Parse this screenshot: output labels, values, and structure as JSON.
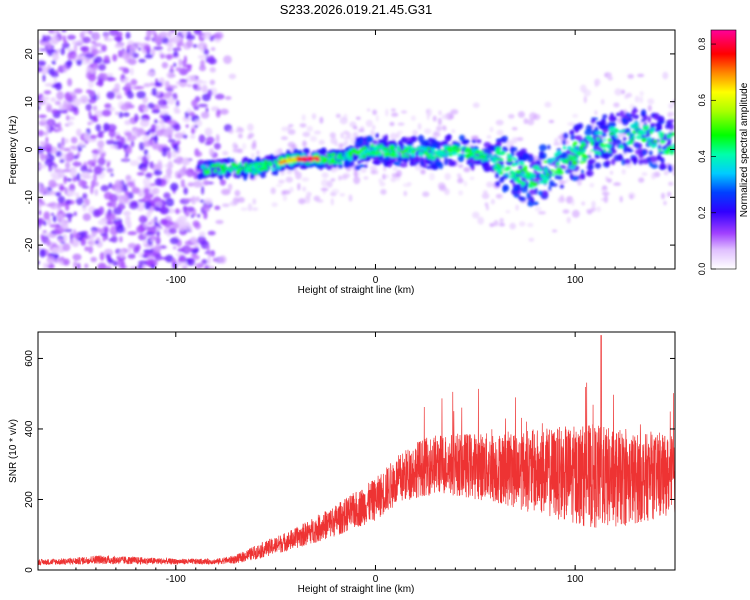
{
  "chart_data": [
    {
      "type": "heatmap",
      "title": "S233.2026.019.21.45.G31",
      "xlabel": "Height of straight line (km)",
      "ylabel": "Frequency (Hz)",
      "xlim": [
        -169,
        150
      ],
      "ylim": [
        -25,
        25
      ],
      "xticks": [
        -100,
        0,
        100
      ],
      "yticks": [
        -20,
        -10,
        0,
        10,
        20
      ],
      "colorbar": {
        "label": "Normalized spectral amplitude",
        "range": [
          0.0,
          0.85
        ],
        "ticks": [
          0.0,
          0.2,
          0.4,
          0.6,
          0.8
        ],
        "tick_labels": [
          "0.0",
          "0.2",
          "0.4",
          "0.6",
          "0.8"
        ],
        "colors": [
          "#ffffff",
          "#cc88ff",
          "#8800ff",
          "#0000ff",
          "#00ccff",
          "#00ffaa",
          "#00ff00",
          "#aaff00",
          "#ffff00",
          "#ff8800",
          "#ff0000",
          "#ff00aa"
        ]
      },
      "ridge": {
        "x": [
          -88,
          -70,
          -60,
          -50,
          -40,
          -30,
          -20,
          -10,
          0,
          10,
          20,
          30,
          40,
          50,
          60,
          65,
          70,
          75,
          80,
          90,
          100,
          110,
          120,
          130,
          140,
          150
        ],
        "y": [
          -4,
          -4,
          -4,
          -3,
          -2,
          -2,
          -2,
          -1,
          0,
          -0.5,
          -0.5,
          -1,
          0,
          -1,
          -2,
          -3,
          -4,
          -6,
          -6,
          -3,
          -1,
          1,
          2,
          3,
          2,
          1
        ],
        "peak_x_range": [
          -40,
          -28
        ],
        "peak_amplitude": 0.85
      },
      "noise_region_x": [
        -169,
        -70
      ]
    },
    {
      "type": "line",
      "xlabel": "Height of straight line (km)",
      "ylabel": "SNR (10 * v/v)",
      "xlim": [
        -169,
        150
      ],
      "ylim": [
        0,
        675
      ],
      "xticks": [
        -100,
        0,
        100
      ],
      "yticks": [
        0,
        200,
        400,
        600
      ],
      "color": "#ee3333",
      "envelope": {
        "x": [
          -169,
          -150,
          -140,
          -130,
          -100,
          -80,
          -70,
          -60,
          -40,
          -20,
          0,
          10,
          20,
          30,
          40,
          50,
          60,
          70,
          80,
          90,
          100,
          110,
          120,
          130,
          140,
          150
        ],
        "mean": [
          22,
          25,
          30,
          28,
          24,
          24,
          30,
          50,
          90,
          140,
          200,
          250,
          285,
          300,
          300,
          295,
          290,
          285,
          280,
          275,
          270,
          265,
          260,
          260,
          265,
          270
        ],
        "spread": [
          8,
          10,
          12,
          12,
          8,
          8,
          12,
          20,
          30,
          45,
          60,
          70,
          80,
          85,
          90,
          95,
          100,
          110,
          120,
          130,
          140,
          150,
          140,
          130,
          120,
          110
        ]
      },
      "peak": {
        "x": 113,
        "y": 665
      }
    }
  ]
}
